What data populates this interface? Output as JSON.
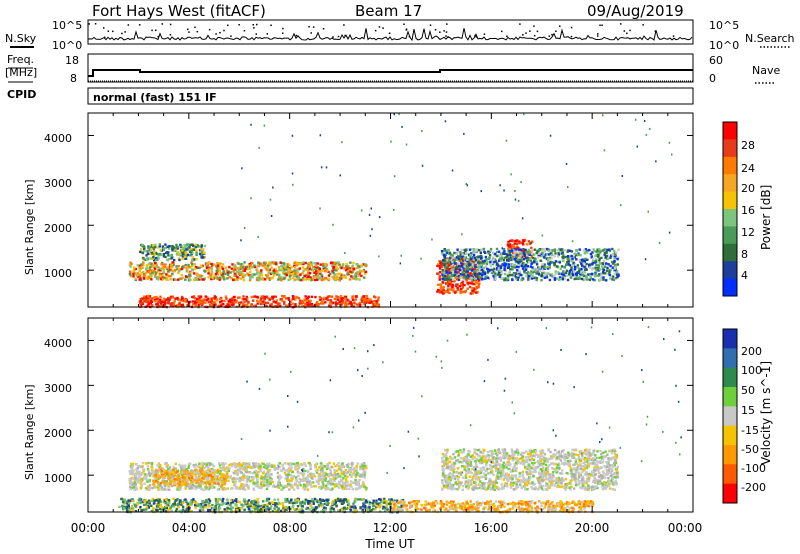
{
  "header": {
    "title": "Fort Hays West (fitACF)",
    "beam": "Beam 17",
    "date": "09/Aug/2019"
  },
  "noise_panel": {
    "left_label": "N.Sky",
    "right_label": "N.Search",
    "left_ticks": [
      "10^5",
      "10^0"
    ],
    "right_ticks": [
      "10^5",
      "10^0"
    ]
  },
  "freq_panel": {
    "left_label_top": "Freq.",
    "left_label_unit": "[MHz]",
    "left_ticks": [
      "18",
      "8"
    ],
    "right_label": "Nave",
    "right_ticks": [
      "60",
      "0"
    ]
  },
  "cpid": {
    "label": "CPID",
    "text": "normal (fast) 151 IF"
  },
  "x_axis": {
    "label": "Time UT",
    "ticks": [
      "00:00",
      "04:00",
      "08:00",
      "12:00",
      "16:00",
      "20:00",
      "00:00"
    ]
  },
  "power_colorbar": {
    "label": "Power [dB]",
    "ticks": [
      "28",
      "24",
      "20",
      "16",
      "12",
      "8",
      "4"
    ],
    "colors": [
      "#ff0000",
      "#e63c1a",
      "#ff7a00",
      "#f5a623",
      "#f5c400",
      "#7dc47d",
      "#4a9a5a",
      "#2e6e3a",
      "#1c3f9e",
      "#0030ff"
    ]
  },
  "velocity_colorbar": {
    "label": "Velocity [m s^-1]",
    "ticks": [
      "200",
      "100",
      "50",
      "15",
      "-15",
      "-50",
      "-100",
      "-200"
    ],
    "colors": [
      "#1a2eb0",
      "#2f6fb0",
      "#2f8a4f",
      "#6dcf3a",
      "#c8c8c8",
      "#f5c400",
      "#ff9900",
      "#ff5a00",
      "#ff0000"
    ]
  },
  "chart_data": [
    {
      "type": "heatmap",
      "name": "Power",
      "ylabel": "Slant Range [km]",
      "xlabel": "",
      "y_ticks": [
        "4000",
        "3000",
        "2000",
        "1000"
      ],
      "ylim": [
        180,
        4500
      ],
      "xlim_hours": [
        0,
        24
      ],
      "regions": [
        {
          "t0": 1.6,
          "t1": 11.0,
          "r0": 800,
          "r1": 1200,
          "level": "mixed-high"
        },
        {
          "t0": 2.0,
          "t1": 4.6,
          "r0": 1250,
          "r1": 1600,
          "level": "green"
        },
        {
          "t0": 2.0,
          "t1": 11.5,
          "r0": 200,
          "r1": 450,
          "level": "red"
        },
        {
          "t0": 13.8,
          "t1": 15.5,
          "r0": 500,
          "r1": 1300,
          "level": "red"
        },
        {
          "t0": 16.6,
          "t1": 17.6,
          "r0": 1300,
          "r1": 1700,
          "level": "red"
        },
        {
          "t0": 14.0,
          "t1": 21.0,
          "r0": 800,
          "r1": 1500,
          "level": "blue-green"
        }
      ]
    },
    {
      "type": "heatmap",
      "name": "Velocity",
      "ylabel": "Slant Range [km]",
      "xlabel": "Time UT",
      "y_ticks": [
        "4000",
        "3000",
        "2000",
        "1000"
      ],
      "ylim": [
        180,
        4500
      ],
      "xlim_hours": [
        0,
        24
      ],
      "regions": [
        {
          "t0": 1.6,
          "t1": 11.0,
          "r0": 700,
          "r1": 1300,
          "level": "gray"
        },
        {
          "t0": 2.5,
          "t1": 5.5,
          "r0": 800,
          "r1": 1150,
          "level": "orange"
        },
        {
          "t0": 1.2,
          "t1": 12.5,
          "r0": 200,
          "r1": 500,
          "level": "green"
        },
        {
          "t0": 14.0,
          "t1": 21.0,
          "r0": 700,
          "r1": 1600,
          "level": "gray"
        },
        {
          "t0": 12.0,
          "t1": 20.0,
          "r0": 200,
          "r1": 450,
          "level": "orange"
        }
      ]
    }
  ]
}
